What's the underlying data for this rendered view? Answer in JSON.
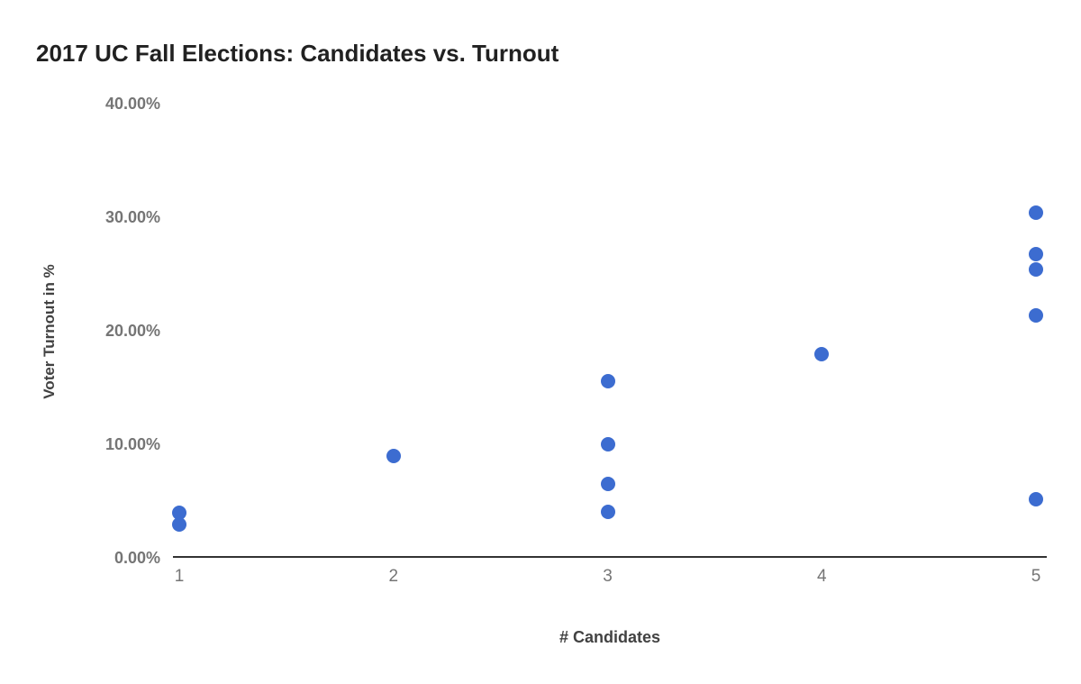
{
  "chart_data": {
    "type": "scatter",
    "title": "2017 UC Fall Elections: Candidates vs. Turnout",
    "xlabel": "# Candidates",
    "ylabel": "Voter Turnout in %",
    "xlim": [
      1,
      5
    ],
    "ylim": [
      0,
      40
    ],
    "grid": false,
    "legend_position": "none",
    "x_ticks": [
      {
        "value": 1,
        "label": "1"
      },
      {
        "value": 2,
        "label": "2"
      },
      {
        "value": 3,
        "label": "3"
      },
      {
        "value": 4,
        "label": "4"
      },
      {
        "value": 5,
        "label": "5"
      }
    ],
    "y_ticks": [
      {
        "value": 0,
        "label": "0.00%"
      },
      {
        "value": 10,
        "label": "10.00%"
      },
      {
        "value": 20,
        "label": "20.00%"
      },
      {
        "value": 30,
        "label": "30.00%"
      },
      {
        "value": 40,
        "label": "40.00%"
      }
    ],
    "points": [
      {
        "x": 1,
        "y": 3.9
      },
      {
        "x": 1,
        "y": 2.9
      },
      {
        "x": 2,
        "y": 8.9
      },
      {
        "x": 3,
        "y": 15.5
      },
      {
        "x": 3,
        "y": 10.0
      },
      {
        "x": 3,
        "y": 6.5
      },
      {
        "x": 3,
        "y": 4.0
      },
      {
        "x": 4,
        "y": 17.9
      },
      {
        "x": 5,
        "y": 30.4
      },
      {
        "x": 5,
        "y": 26.7
      },
      {
        "x": 5,
        "y": 25.4
      },
      {
        "x": 5,
        "y": 21.3
      },
      {
        "x": 5,
        "y": 5.1
      }
    ],
    "colors": {
      "point": "#3c6cd0",
      "axis_line": "#333333",
      "tick_label": "#757575",
      "title": "#212121",
      "axis_title": "#424242",
      "background": "#ffffff"
    }
  }
}
